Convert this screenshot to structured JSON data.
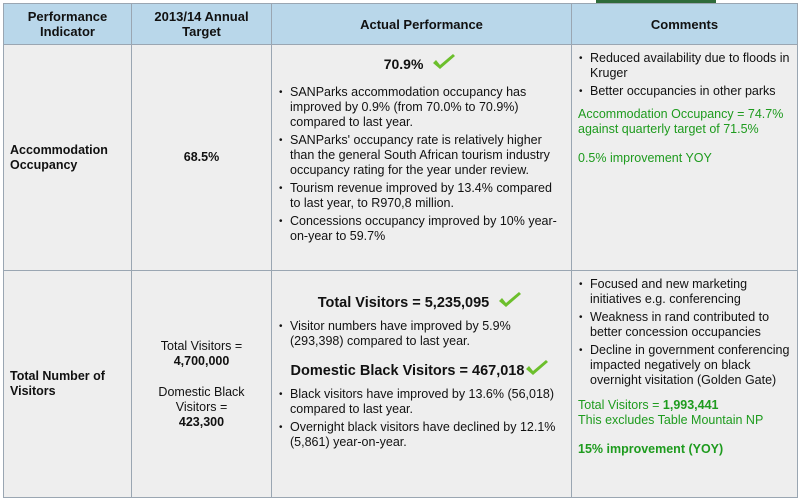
{
  "header": {
    "col1": "Performance Indicator",
    "col2": "2013/14 Annual Target",
    "col3": "Actual Performance",
    "col4": "Comments"
  },
  "rows": [
    {
      "indicator": "Accommodation Occupancy",
      "target": "68.5%",
      "headline": "70.9%",
      "bullets": [
        "SANParks  accommodation occupancy has improved by 0.9% (from 70.0% to 70.9%) compared to last year.",
        "SANParks' occupancy rate is relatively higher than the general South African tourism industry occupancy rating for the year under review.",
        "Tourism revenue improved by 13.4% compared to last year, to R970,8 million.",
        "Concessions occupancy improved by 10% year-on-year to 59.7%"
      ],
      "comments": [
        "Reduced availability due to floods in Kruger",
        "Better occupancies in other parks"
      ],
      "note1": "Accommodation Occupancy = 74.7% against  quarterly target of 71.5%",
      "note2": "0.5% improvement YOY"
    },
    {
      "indicator": "Total Number of Visitors",
      "target_label1": "Total Visitors =",
      "target_value1": "4,700,000",
      "target_label2": "Domestic Black Visitors =",
      "target_value2": "423,300",
      "headline1": "Total Visitors = 5,235,095",
      "bullets1": [
        "Visitor numbers have  improved by 5.9% (293,398) compared to last year."
      ],
      "headline2": "Domestic Black Visitors = 467,018",
      "bullets2": [
        "Black visitors have improved by 13.6% (56,018) compared to last year.",
        "Overnight black visitors have declined by 12.1% (5,861) year-on-year."
      ],
      "comments": [
        "Focused and new marketing initiatives e.g. conferencing",
        "Weakness in rand contributed to better concession occupancies",
        "Decline in government conferencing impacted negatively on black overnight visitation (Golden Gate)"
      ],
      "note_label": "Total Visitors =",
      "note_value": "1,993,441",
      "note_line2": "This excludes Table Mountain NP",
      "note3": "15% improvement (YOY)"
    }
  ],
  "colors": {
    "header_bg": "#b9d7ea",
    "cell_bg": "#eeeeee",
    "accent_green": "#1e9b1e",
    "check_green": "#6cbf2c"
  },
  "icons": [
    "checkmark-icon"
  ]
}
